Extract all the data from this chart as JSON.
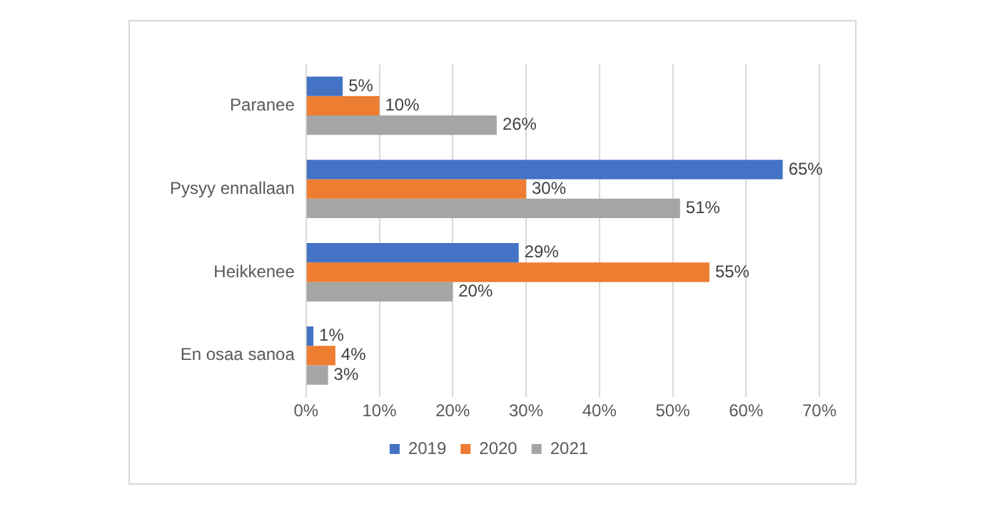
{
  "chart_data": {
    "type": "bar",
    "orientation": "horizontal",
    "categories": [
      "Paranee",
      "Pysyy ennallaan",
      "Heikkenee",
      "En osaa sanoa"
    ],
    "series": [
      {
        "name": "2019",
        "color": "#4472c4",
        "values": [
          5,
          65,
          29,
          1
        ],
        "value_labels": [
          "5%",
          "65%",
          "29%",
          "1%"
        ]
      },
      {
        "name": "2020",
        "color": "#ed7d31",
        "values": [
          10,
          30,
          55,
          4
        ],
        "value_labels": [
          "10%",
          "30%",
          "55%",
          "4%"
        ]
      },
      {
        "name": "2021",
        "color": "#a5a5a5",
        "values": [
          26,
          51,
          20,
          3
        ],
        "value_labels": [
          "26%",
          "51%",
          "20%",
          "3%"
        ]
      }
    ],
    "xlim": [
      0,
      70
    ],
    "xticks": [
      {
        "value": 0,
        "label": "0%"
      },
      {
        "value": 10,
        "label": "10%"
      },
      {
        "value": 20,
        "label": "20%"
      },
      {
        "value": 30,
        "label": "30%"
      },
      {
        "value": 40,
        "label": "40%"
      },
      {
        "value": 50,
        "label": "50%"
      },
      {
        "value": 60,
        "label": "60%"
      },
      {
        "value": 70,
        "label": "70%"
      }
    ],
    "grid": "x",
    "legend": "bottom"
  }
}
